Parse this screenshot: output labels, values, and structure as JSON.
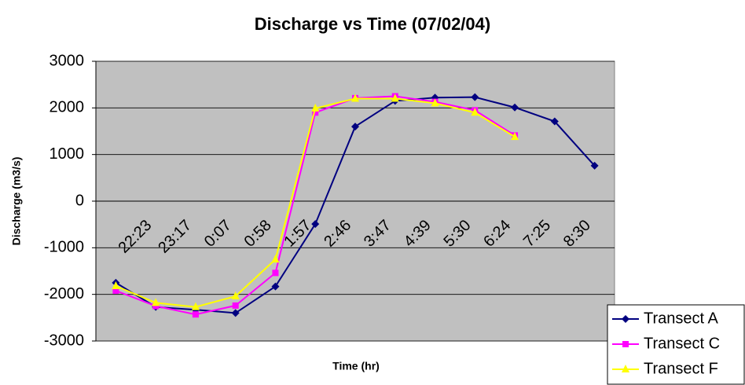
{
  "chart_data": {
    "type": "line",
    "title": "Discharge vs Time (07/02/04)",
    "xlabel": "Time (hr)",
    "ylabel": "Discharge (m3/s)",
    "categories": [
      null,
      "22:23",
      "23:17",
      "0:07",
      "0:58",
      "1:57",
      "2:46",
      "3:47",
      "4:39",
      "5:30",
      "6:24",
      "7:25",
      "8:30"
    ],
    "series": [
      {
        "name": "Transect A",
        "color": "#000080",
        "marker": "diamond",
        "values": [
          -1750,
          -2270,
          -2330,
          -2400,
          -1830,
          -490,
          1600,
          2150,
          2220,
          2230,
          2010,
          1710,
          760
        ]
      },
      {
        "name": "Transect C",
        "color": "#ff00ff",
        "marker": "square",
        "values": [
          -1920,
          -2250,
          -2430,
          -2240,
          -1540,
          1900,
          2210,
          2250,
          2130,
          1950,
          1410,
          null,
          null
        ]
      },
      {
        "name": "Transect F",
        "color": "#ffff00",
        "marker": "triangle",
        "values": [
          -1820,
          -2180,
          -2270,
          -2040,
          -1250,
          1990,
          2200,
          2200,
          2100,
          1900,
          1380,
          null,
          null
        ]
      }
    ],
    "ylim": [
      -3000,
      3000
    ],
    "yticks": [
      -3000,
      -2000,
      -1000,
      0,
      1000,
      2000,
      3000
    ],
    "grid": true,
    "legend": "lower right"
  }
}
